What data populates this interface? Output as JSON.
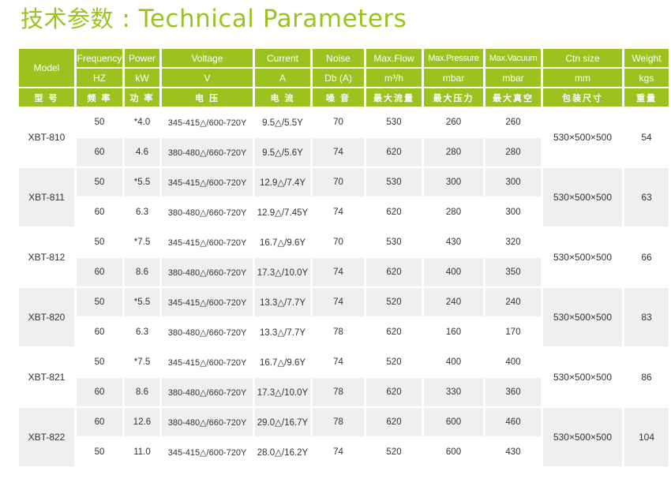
{
  "title": {
    "zh": "技术参数",
    "sep": " : ",
    "en": "Technical Parameters"
  },
  "header": {
    "model": "Model",
    "row1": [
      "Frequency",
      "Power",
      "Voltage",
      "Current",
      "Noise",
      "Max.Flow",
      "Max.Pressure",
      "Max.Vacuum",
      "Ctn size",
      "Weight"
    ],
    "units": [
      "HZ",
      "kW",
      "V",
      "A",
      "Db (A)",
      "m³/h",
      "mbar",
      "mbar",
      "mm",
      "kgs"
    ],
    "cn": [
      "型 号",
      "频 率",
      "功 率",
      "电 压",
      "电 流",
      "噪 音",
      "最大流量",
      "最大压力",
      "最大真空",
      "包装尺寸",
      "重量"
    ]
  },
  "models": [
    {
      "name": "XBT-810",
      "ctn": "530×500×500",
      "weight": "54",
      "rows": [
        [
          "50",
          "*4.0",
          "345-415△/600-720Y",
          "9.5△/5.5Y",
          "70",
          "530",
          "260",
          "260"
        ],
        [
          "60",
          "4.6",
          "380-480△/660-720Y",
          "9.5△/5.6Y",
          "74",
          "620",
          "280",
          "280"
        ]
      ]
    },
    {
      "name": "XBT-811",
      "ctn": "530×500×500",
      "weight": "63",
      "rows": [
        [
          "50",
          "*5.5",
          "345-415△/600-720Y",
          "12.9△/7.4Y",
          "70",
          "530",
          "300",
          "300"
        ],
        [
          "60",
          "6.3",
          "380-480△/660-720Y",
          "12.9△/7.45Y",
          "74",
          "620",
          "280",
          "300"
        ]
      ]
    },
    {
      "name": "XBT-812",
      "ctn": "530×500×500",
      "weight": "66",
      "rows": [
        [
          "50",
          "*7.5",
          "345-415△/600-720Y",
          "16.7△/9.6Y",
          "70",
          "530",
          "430",
          "320"
        ],
        [
          "60",
          "8.6",
          "380-480△/660-720Y",
          "17.3△/10.0Y",
          "74",
          "620",
          "400",
          "350"
        ]
      ]
    },
    {
      "name": "XBT-820",
      "ctn": "530×500×500",
      "weight": "83",
      "rows": [
        [
          "50",
          "*5.5",
          "345-415△/600-720Y",
          "13.3△/7.7Y",
          "74",
          "520",
          "240",
          "240"
        ],
        [
          "60",
          "6.3",
          "380-480△/660-720Y",
          "13.3△/7.7Y",
          "78",
          "620",
          "160",
          "170"
        ]
      ]
    },
    {
      "name": "XBT-821",
      "ctn": "530×500×500",
      "weight": "86",
      "rows": [
        [
          "50",
          "*7.5",
          "345-415△/600-720Y",
          "16.7△/9.6Y",
          "74",
          "520",
          "400",
          "400"
        ],
        [
          "60",
          "8.6",
          "380-480△/660-720Y",
          "17.3△/10.0Y",
          "78",
          "620",
          "330",
          "360"
        ]
      ]
    },
    {
      "name": "XBT-822",
      "ctn": "530×500×500",
      "weight": "104",
      "rows": [
        [
          "60",
          "12.6",
          "380-480△/660-720Y",
          "29.0△/16.7Y",
          "78",
          "620",
          "600",
          "460"
        ],
        [
          "50",
          "11.0",
          "345-415△/600-720Y",
          "28.0△/16.2Y",
          "74",
          "520",
          "600",
          "430"
        ]
      ]
    }
  ]
}
